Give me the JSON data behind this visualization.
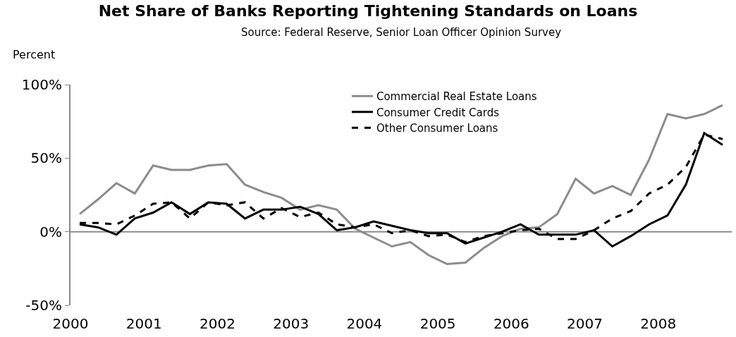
{
  "chart_data": {
    "type": "line",
    "title": "Net Share of Banks Reporting Tightening Standards on Loans",
    "subtitle": "Source: Federal Reserve, Senior Loan Officer Opinion Survey",
    "ylabel": "Percent",
    "x": [
      2000.125,
      2000.375,
      2000.625,
      2000.875,
      2001.125,
      2001.375,
      2001.625,
      2001.875,
      2002.125,
      2002.375,
      2002.625,
      2002.875,
      2003.125,
      2003.375,
      2003.625,
      2003.875,
      2004.125,
      2004.375,
      2004.625,
      2004.875,
      2005.125,
      2005.375,
      2005.625,
      2005.875,
      2006.125,
      2006.375,
      2006.625,
      2006.875,
      2007.125,
      2007.375,
      2007.625,
      2007.875,
      2008.125,
      2008.375,
      2008.625,
      2008.875
    ],
    "series": [
      {
        "name": "Commercial Real Estate Loans",
        "color": "#8c8c8c",
        "line_style": "solid",
        "values": [
          12,
          22,
          33,
          26,
          45,
          42,
          42,
          45,
          46,
          32,
          27,
          23,
          15,
          18,
          15,
          2,
          -4,
          -10,
          -7,
          -16,
          -22,
          -21,
          -11,
          -3,
          2,
          3,
          12,
          36,
          26,
          31,
          25,
          49,
          80,
          77,
          80,
          86
        ]
      },
      {
        "name": "Consumer Credit Cards",
        "color": "#000000",
        "line_style": "solid",
        "values": [
          5,
          3,
          -2,
          9,
          13,
          20,
          12,
          20,
          19,
          9,
          15,
          15,
          17,
          12,
          1,
          3,
          7,
          4,
          1,
          -1,
          -1,
          -8,
          -4,
          0,
          5,
          -2,
          -2,
          -2,
          1,
          -10,
          -3,
          5,
          11,
          32,
          67,
          59
        ]
      },
      {
        "name": "Other Consumer Loans",
        "color": "#000000",
        "line_style": "dashed",
        "values": [
          6,
          6,
          5,
          11,
          19,
          20,
          9,
          20,
          18,
          20,
          9,
          16,
          10,
          13,
          5,
          3,
          5,
          -1,
          1,
          -3,
          -2,
          -7,
          -3,
          -1,
          1,
          2,
          -5,
          -5,
          1,
          9,
          14,
          26,
          32,
          44,
          66,
          63
        ]
      }
    ],
    "xlim": [
      2000,
      2009
    ],
    "xticks": [
      2000,
      2001,
      2002,
      2003,
      2004,
      2005,
      2006,
      2007,
      2008
    ],
    "ylim": [
      -50,
      100
    ],
    "yticks": [
      {
        "value": -50,
        "label": "-50%"
      },
      {
        "value": 0,
        "label": "0%"
      },
      {
        "value": 50,
        "label": "50%"
      },
      {
        "value": 100,
        "label": "100%"
      }
    ],
    "ref_lines": [
      {
        "axis": "y",
        "value": 0,
        "color": "#8c8c8c",
        "line_style": "solid"
      }
    ],
    "grid": false,
    "legend": "top right"
  }
}
